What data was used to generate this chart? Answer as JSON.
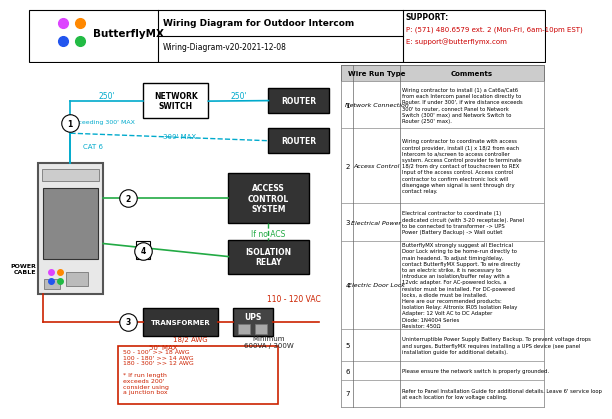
{
  "title": "Wiring Diagram for Outdoor Intercom",
  "subtitle": "Wiring-Diagram-v20-2021-12-08",
  "logo_text": "ButterflyMX",
  "support_label": "SUPPORT:",
  "support_phone": "P: (571) 480.6579 ext. 2 (Mon-Fri, 6am-10pm EST)",
  "support_email": "E: support@butterflymx.com",
  "background": "#ffffff",
  "cyan_color": "#00aacc",
  "green_color": "#22aa44",
  "red_color": "#cc2200",
  "dark_color": "#222222",
  "rows": [
    {
      "num": "1",
      "type": "Network Connection",
      "comment": "Wiring contractor to install (1) a Cat6a/Cat6\nfrom each Intercom panel location directly to\nRouter. If under 300', if wire distance exceeds\n300' to router, connect Panel to Network\nSwitch (300' max) and Network Switch to\nRouter (250' max)."
    },
    {
      "num": "2",
      "type": "Access Control",
      "comment": "Wiring contractor to coordinate with access\ncontrol provider, install (1) x 18/2 from each\nIntercom to a/screen to access controller\nsystem. Access Control provider to terminate\n18/2 from dry contact of touchscreen to REX\nInput of the access control. Access control\ncontractor to confirm electronic lock will\ndisengage when signal is sent through dry\ncontact relay."
    },
    {
      "num": "3",
      "type": "Electrical Power",
      "comment": "Electrical contractor to coordinate (1)\ndedicated circuit (with 3-20 receptacle). Panel\nto be connected to transformer -> UPS\nPower (Battery Backup) -> Wall outlet"
    },
    {
      "num": "4",
      "type": "Electric Door Lock",
      "comment": "ButterflyMX strongly suggest all Electrical\nDoor Lock wiring to be home-run directly to\nmain headend. To adjust timing/delay,\ncontact ButterflyMX Support. To wire directly\nto an electric strike, it is necessary to\nintroduce an isolation/buffer relay with a\n12vdc adapter. For AC-powered locks, a\nresistor must be installed. For DC-powered\nlocks, a diode must be installed.\nHere are our recommended products:\nIsolation Relay: Altronix IR05 Isolation Relay\nAdapter: 12 Volt AC to DC Adapter\nDiode: 1N4004 Series\nResistor: 450Ω"
    },
    {
      "num": "5",
      "type": "",
      "comment": "Uninterruptible Power Supply Battery Backup. To prevent voltage drops\nand surges, ButterflyMX requires installing a UPS device (see panel\ninstallation guide for additional details)."
    },
    {
      "num": "6",
      "type": "",
      "comment": "Please ensure the network switch is properly grounded."
    },
    {
      "num": "7",
      "type": "",
      "comment": "Refer to Panel Installation Guide for additional details. Leave 6' service loop\nat each location for low voltage cabling."
    }
  ]
}
